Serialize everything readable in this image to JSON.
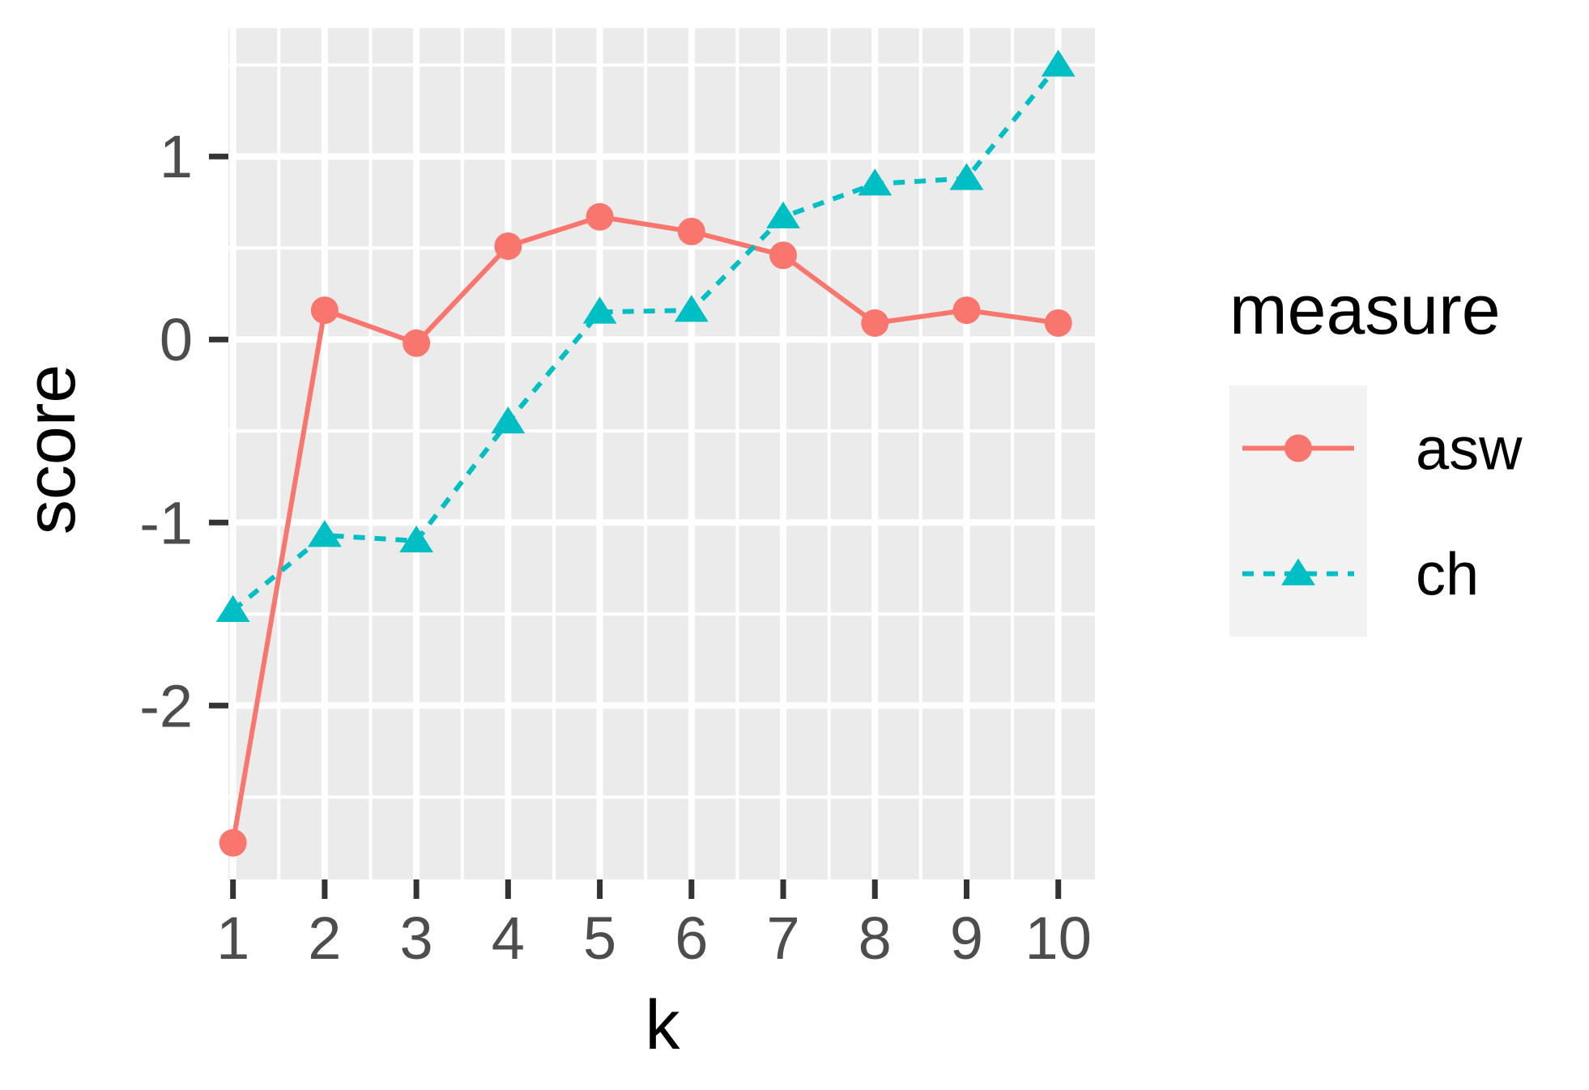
{
  "chart_data": {
    "type": "line",
    "xlabel": "k",
    "ylabel": "score",
    "x": [
      1,
      2,
      3,
      4,
      5,
      6,
      7,
      8,
      9,
      10
    ],
    "x_ticks": [
      "1",
      "2",
      "3",
      "4",
      "5",
      "6",
      "7",
      "8",
      "9",
      "10"
    ],
    "y_ticks": [
      -2,
      -1,
      0,
      1
    ],
    "y_tick_labels": [
      "-2",
      "-1",
      "0",
      "1"
    ],
    "xlim": [
      0.95,
      10.4
    ],
    "ylim": [
      -2.95,
      1.7
    ],
    "grid": true,
    "legend": {
      "title": "measure",
      "position": "right"
    },
    "series": [
      {
        "name": "asw",
        "color": "#F8766D",
        "marker": "circle",
        "linestyle": "solid",
        "values": [
          -2.75,
          0.16,
          -0.02,
          0.51,
          0.67,
          0.59,
          0.46,
          0.09,
          0.16,
          0.09
        ]
      },
      {
        "name": "ch",
        "color": "#00BFC4",
        "marker": "triangle",
        "linestyle": "dashed",
        "values": [
          -1.48,
          -1.07,
          -1.1,
          -0.45,
          0.15,
          0.16,
          0.67,
          0.85,
          0.88,
          1.5
        ]
      }
    ],
    "colors": {
      "panel_bg": "#EBEBEB",
      "grid": "#FFFFFF",
      "legend_key_bg": "#F2F2F2",
      "text": "#4D4D4D"
    }
  }
}
